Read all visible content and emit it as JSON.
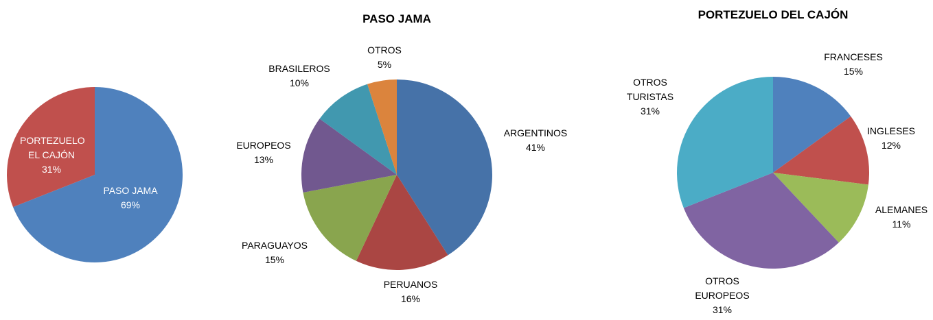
{
  "chart_data": [
    {
      "type": "pie",
      "categories": [
        "PASO JAMA",
        "PORTEZUELO EL CAJÓN"
      ],
      "values": [
        69,
        31
      ],
      "value_labels": [
        "69%",
        "31%"
      ],
      "colors": [
        "#4f81bd",
        "#c0504d"
      ]
    },
    {
      "type": "pie",
      "title": "PASO JAMA",
      "categories": [
        "ARGENTINOS",
        "PERUANOS",
        "PARAGUAYOS",
        "EUROPEOS",
        "BRASILEROS",
        "OTROS"
      ],
      "values": [
        41,
        16,
        15,
        13,
        10,
        5
      ],
      "value_labels": [
        "41%",
        "16%",
        "15%",
        "13%",
        "10%",
        "5%"
      ],
      "colors": [
        "#4672a8",
        "#aa4643",
        "#89a54e",
        "#71588f",
        "#4198af",
        "#db843d"
      ]
    },
    {
      "type": "pie",
      "title": "PORTEZUELO DEL CAJÓN",
      "categories": [
        "FRANCESES",
        "INGLESES",
        "ALEMANES",
        "OTROS EUROPEOS",
        "OTROS TURISTAS"
      ],
      "values": [
        15,
        12,
        11,
        31,
        31
      ],
      "value_labels": [
        "15%",
        "12%",
        "11%",
        "31%",
        "31%"
      ],
      "colors": [
        "#4f81bd",
        "#c0504d",
        "#9bbb59",
        "#8064a2",
        "#4bacc6"
      ]
    }
  ]
}
